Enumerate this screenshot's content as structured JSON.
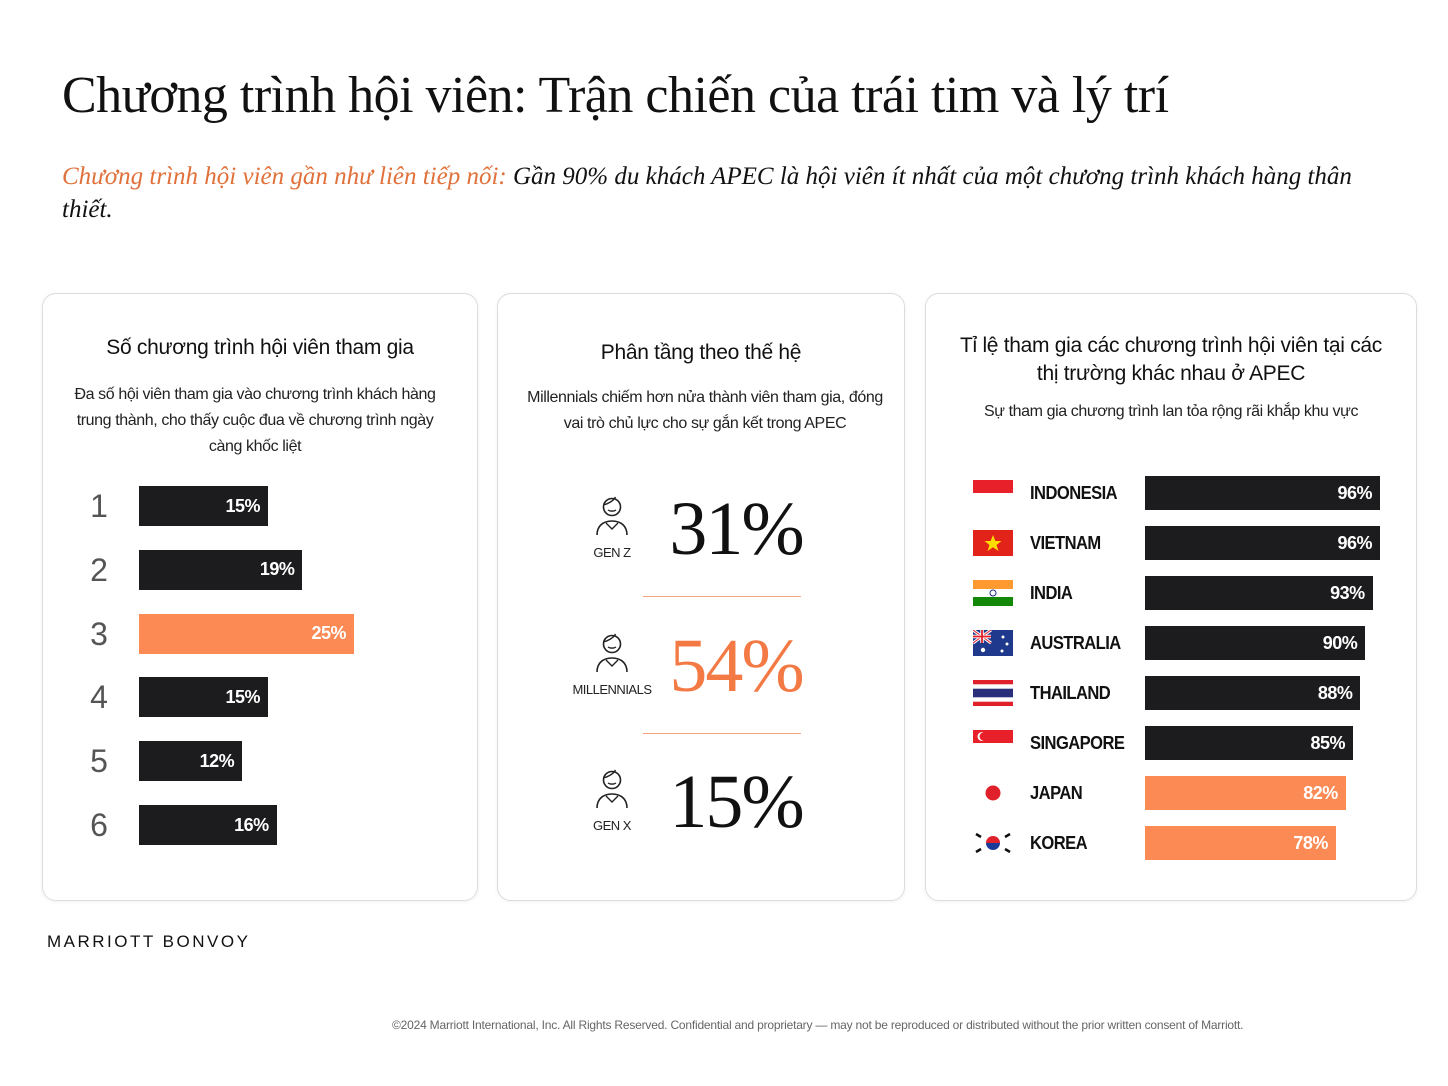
{
  "header": {
    "title": "Chương trình hội viên: Trận chiến của trái tim và lý trí",
    "subtitle_lead": "Chương trình hội viên gần như liên tiếp nối:",
    "subtitle": "Gần 90% du khách APEC là hội viên ít nhất của một chương trình khách hàng thân thiết."
  },
  "chart_data": [
    {
      "type": "bar",
      "title": "Số chương trình hội viên tham gia",
      "subtitle": "Đa số hội viên tham gia vào chương trình khách hàng trung thành, cho thấy cuộc đua về chương trình ngày càng khốc liệt",
      "categories": [
        "1",
        "2",
        "3",
        "4",
        "5",
        "6"
      ],
      "values": [
        15,
        19,
        25,
        15,
        12,
        16
      ],
      "value_labels": [
        "15%",
        "19%",
        "25%",
        "15%",
        "12%",
        "16%"
      ],
      "colors": [
        "#1c1c1e",
        "#1c1c1e",
        "#fb8a55",
        "#1c1c1e",
        "#1c1c1e",
        "#1c1c1e"
      ]
    },
    {
      "type": "stat",
      "title": "Phân tầng theo thế hệ",
      "subtitle": "Millennials chiếm hơn nửa thành viên tham gia, đóng vai trò chủ lực cho sự gắn kết trong APEC",
      "categories": [
        "GEN Z",
        "MILLENNIALS",
        "GEN X"
      ],
      "values": [
        31,
        54,
        15
      ],
      "value_labels": [
        "31%",
        "54%",
        "15%"
      ],
      "colors": [
        "#111111",
        "#f47a45",
        "#111111"
      ]
    },
    {
      "type": "bar",
      "title": "Tỉ lệ tham gia các chương trình hội viên tại các thị trường khác nhau ở APEC",
      "subtitle": "Sự tham gia chương trình lan tỏa rộng rãi khắp khu vực",
      "categories": [
        "INDONESIA",
        "VIETNAM",
        "INDIA",
        "AUSTRALIA",
        "THAILAND",
        "SINGAPORE",
        "JAPAN",
        "KOREA"
      ],
      "values": [
        96,
        96,
        93,
        90,
        88,
        85,
        82,
        78
      ],
      "value_labels": [
        "96%",
        "96%",
        "93%",
        "90%",
        "88%",
        "85%",
        "82%",
        "78%"
      ],
      "colors": [
        "#1c1c1e",
        "#1c1c1e",
        "#1c1c1e",
        "#1c1c1e",
        "#1c1c1e",
        "#1c1c1e",
        "#fb8a55",
        "#fb8a55"
      ]
    }
  ],
  "footer": {
    "brand": "MARRIOTT BONVOY",
    "copyright": "©2024 Marriott International, Inc. All Rights Reserved. Confidential and proprietary — may not be reproduced or distributed without the prior written consent of Marriott."
  }
}
